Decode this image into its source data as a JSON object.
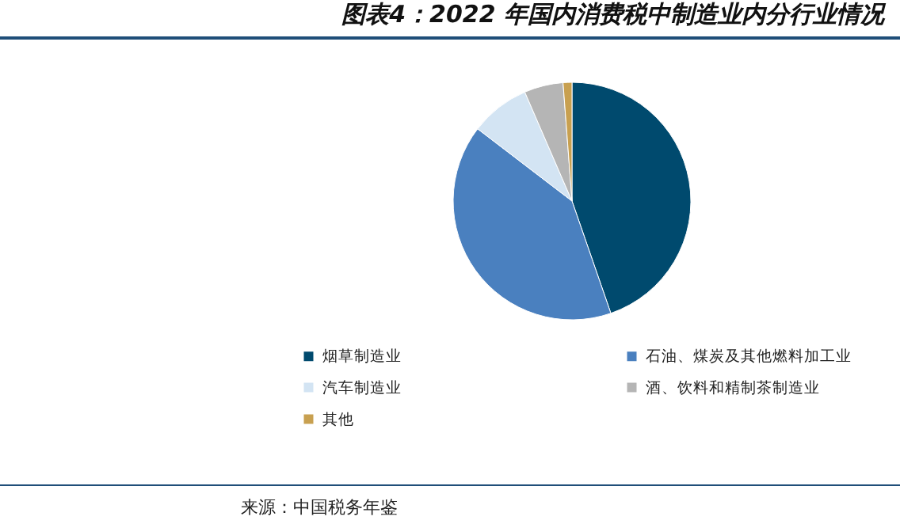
{
  "chart_data": {
    "type": "pie",
    "title": "图表4：2022 年国内消费税中制造业内分行业情况",
    "categories": [
      "烟草制造业",
      "石油、煤炭及其他燃料加工业",
      "汽车制造业",
      "酒、饮料和精制茶制造业",
      "其他"
    ],
    "values": [
      44.7,
      40.7,
      8.1,
      5.3,
      1.2
    ],
    "colors": [
      "#004a6e",
      "#4a80bf",
      "#d3e4f3",
      "#b5b5b5",
      "#c8a050"
    ],
    "legend": "bottom",
    "annotations": [
      "来源：中国税务年鉴"
    ]
  }
}
